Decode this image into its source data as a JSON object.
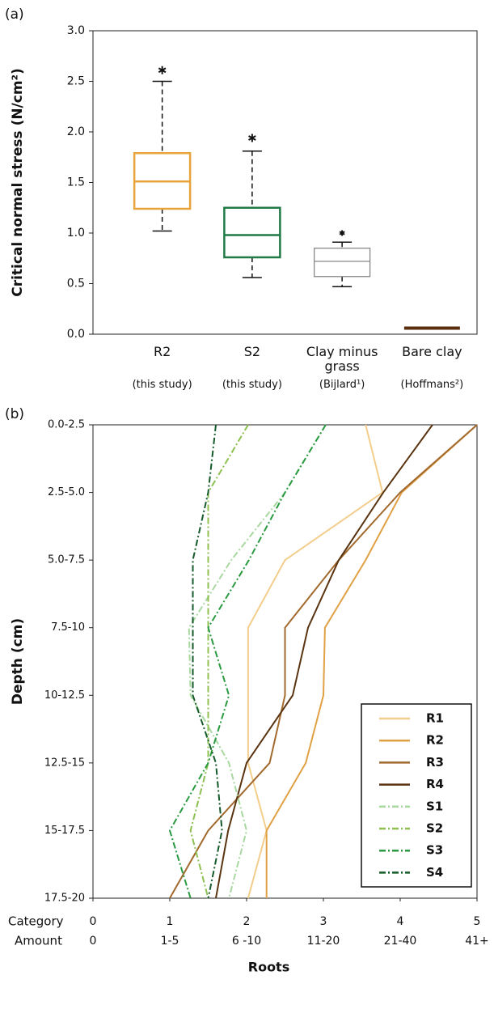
{
  "chart_data": [
    {
      "type": "box",
      "panel_label": "(a)",
      "ylabel": "Critical normal stress (N/cm²)",
      "categories": [
        "R2",
        "S2",
        "Clay minus grass",
        "Bare clay"
      ],
      "sublabels": [
        "(this study)",
        "(this study)",
        "(Bijlard¹)",
        "(Hoffmans²)"
      ],
      "boxes": [
        {
          "min": 1.02,
          "q1": 1.24,
          "median": 1.51,
          "q3": 1.79,
          "max": 2.5,
          "outlier": 2.61,
          "color": "#e8a43a"
        },
        {
          "min": 0.56,
          "q1": 0.76,
          "median": 0.98,
          "q3": 1.25,
          "max": 1.81,
          "outlier": 1.94,
          "color": "#1f7a45"
        },
        {
          "min": 0.47,
          "q1": 0.57,
          "median": 0.72,
          "q3": 0.85,
          "max": 0.91,
          "outlier": 1.0,
          "color": "#888888"
        },
        {
          "min": null,
          "q1": null,
          "median": 0.06,
          "q3": null,
          "max": null,
          "outlier": null,
          "color": "#5a2d0c"
        }
      ],
      "ylim": [
        0,
        3
      ],
      "yticks": [
        {
          "value": 0,
          "label": "0.0"
        },
        {
          "value": 0.5,
          "label": "0.5"
        },
        {
          "value": 1,
          "label": "1.0"
        },
        {
          "value": 1.5,
          "label": "1.5"
        },
        {
          "value": 2,
          "label": "2.0"
        },
        {
          "value": 2.5,
          "label": "2.5"
        },
        {
          "value": 3,
          "label": "3.0"
        }
      ]
    },
    {
      "type": "line",
      "panel_label": "(b)",
      "ylabel": "Depth (cm)",
      "xlabel": "Roots",
      "categories": [
        "0.0-2.5",
        "2.5-5.0",
        "5.0-7.5",
        "7.5-10",
        "10-12.5",
        "12.5-15",
        "15-17.5",
        "17.5-20"
      ],
      "xlim": [
        0,
        5
      ],
      "xticks": [
        0,
        1,
        2,
        3,
        4,
        5
      ],
      "xtick_row_labels": [
        "Category",
        "Amount"
      ],
      "amount_labels": [
        "0",
        "1-5",
        "6 -10",
        "11-20",
        "21-40",
        "41+"
      ],
      "legend": "lower right",
      "series": [
        {
          "name": "R1",
          "color": "#f3cd8c",
          "style": "solid",
          "values": [
            3.55,
            3.77,
            2.5,
            2.02,
            2.02,
            2.02,
            2.26,
            2.02
          ]
        },
        {
          "name": "R2",
          "color": "#e0a044",
          "style": "solid",
          "values": [
            5,
            4.02,
            3.55,
            3.02,
            3.0,
            2.77,
            2.26,
            2.26
          ]
        },
        {
          "name": "R3",
          "color": "#a26a2e",
          "style": "solid",
          "values": [
            5,
            4.0,
            3.2,
            2.5,
            2.5,
            2.3,
            1.5,
            1.0
          ]
        },
        {
          "name": "R4",
          "color": "#5a3410",
          "style": "solid",
          "values": [
            4.42,
            3.78,
            3.2,
            2.8,
            2.6,
            2.0,
            1.76,
            1.6
          ]
        },
        {
          "name": "S1",
          "color": "#a8d8a0",
          "style": "dashdot",
          "values": [
            3.03,
            2.5,
            1.8,
            1.25,
            1.27,
            1.77,
            2.0,
            1.77
          ]
        },
        {
          "name": "S2",
          "color": "#8cc050",
          "style": "dashdot",
          "values": [
            2.02,
            1.5,
            1.5,
            1.5,
            1.5,
            1.5,
            1.27,
            1.5
          ]
        },
        {
          "name": "S3",
          "color": "#2a9a40",
          "style": "dashdot",
          "values": [
            3.03,
            2.5,
            2.03,
            1.5,
            1.77,
            1.5,
            1.0,
            1.27
          ]
        },
        {
          "name": "S4",
          "color": "#155a2a",
          "style": "dashdot",
          "values": [
            1.6,
            1.5,
            1.3,
            1.3,
            1.3,
            1.6,
            1.68,
            1.5
          ]
        }
      ]
    }
  ]
}
